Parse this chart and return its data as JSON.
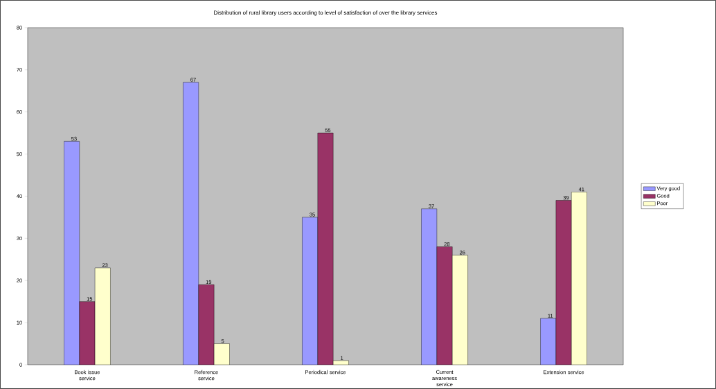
{
  "chart_data": {
    "type": "bar",
    "title": "Distribution of rural library users according to level of satisfaction of over the library services",
    "categories": [
      "Book issue service",
      "Reference service",
      "Periodical service",
      "Current awareness service",
      "Extension service"
    ],
    "series": [
      {
        "name": "Very good",
        "color": "#9999ff",
        "values": [
          53,
          67,
          35,
          37,
          11
        ]
      },
      {
        "name": "Good",
        "color": "#993366",
        "values": [
          15,
          19,
          55,
          28,
          39
        ]
      },
      {
        "name": "Poor",
        "color": "#ffffcc",
        "values": [
          23,
          5,
          1,
          26,
          41
        ]
      }
    ],
    "ylim": [
      0,
      80
    ],
    "yticks": [
      0,
      10,
      20,
      30,
      40,
      50,
      60,
      70,
      80
    ],
    "legend": "right",
    "data_labels": true
  }
}
